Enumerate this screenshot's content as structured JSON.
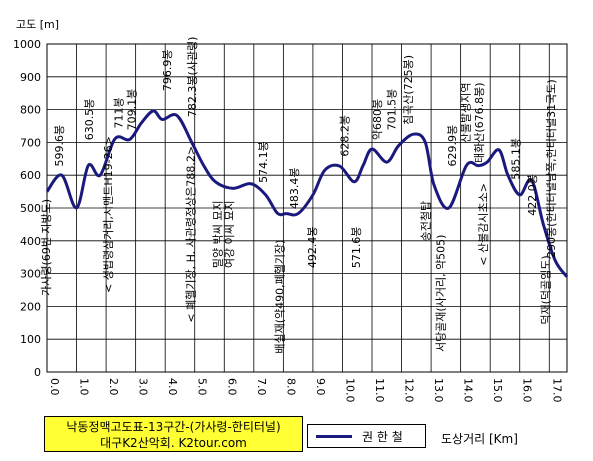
{
  "chart_data": {
    "type": "line",
    "title_line1": "낙동정맥고도표-13구간-(가사령-한티터널)",
    "title_line2": "대구K2산악회. K2tour.com",
    "ylabel": "고도 [m]",
    "xlabel": "도상거리 [Km]",
    "ylim": [
      0,
      1000
    ],
    "xlim": [
      0,
      17.6
    ],
    "y_ticks": [
      "0",
      "100",
      "200",
      "300",
      "400",
      "500",
      "600",
      "700",
      "800",
      "900",
      "1000"
    ],
    "x_ticks": [
      "0.0",
      "1.0",
      "2.0",
      "3.0",
      "4.0",
      "5.0",
      "6.0",
      "7.0",
      "8.0",
      "9.0",
      "10.0",
      "11.0",
      "12.0",
      "13.0",
      "14.0",
      "15.0",
      "16.0",
      "17.0"
    ],
    "grid": true,
    "legend_position": "bottom",
    "line_color": "#1a1a7e",
    "series": [
      {
        "name": "권 한 철",
        "x": [
          0,
          0.5,
          1.0,
          1.4,
          1.8,
          2.3,
          2.8,
          3.2,
          3.6,
          3.9,
          4.4,
          4.9,
          5.3,
          5.7,
          6.3,
          6.9,
          7.4,
          7.8,
          8.1,
          8.5,
          9.0,
          9.4,
          9.9,
          10.4,
          10.7,
          11.0,
          11.5,
          11.9,
          12.4,
          12.8,
          13.1,
          13.6,
          14.2,
          14.6,
          14.9,
          15.3,
          15.6,
          16.0,
          16.4,
          16.8,
          17.2,
          17.6
        ],
        "y": [
          550,
          600,
          500,
          630,
          600,
          711,
          709,
          760,
          796,
          770,
          782,
          700,
          630,
          580,
          560,
          574,
          540,
          484,
          483,
          483,
          540,
          615,
          628,
          580,
          630,
          680,
          640,
          690,
          725,
          701,
          570,
          500,
          630,
          629,
          640,
          677,
          600,
          540,
          585,
          450,
          340,
          290
        ]
      }
    ],
    "annotations": [
      {
        "text": "가사령(69번 지방도)",
        "x": 0.1,
        "y": 380
      },
      {
        "text": "599.6봉",
        "x": 0.55,
        "y": 690
      },
      {
        "text": "630.5봉",
        "x": 1.55,
        "y": 770
      },
      {
        "text": "< 성법령삼거리,시멘트H19-26>",
        "x": 2.2,
        "y": 480
      },
      {
        "text": "711봉",
        "x": 2.55,
        "y": 790
      },
      {
        "text": "709.1봉",
        "x": 3.0,
        "y": 800
      },
      {
        "text": "796.9봉",
        "x": 4.2,
        "y": 920
      },
      {
        "text": "782.3봉(사관령)",
        "x": 5.05,
        "y": 900
      },
      {
        "text": "< 폐헬기장, H. 사관령정상은788.2>",
        "x": 5.0,
        "y": 420
      },
      {
        "text": "밀양 박씨 묘지",
        "x": 5.9,
        "y": 420
      },
      {
        "text": "여강 이씨 묘지",
        "x": 6.3,
        "y": 420
      },
      {
        "text": "574.1봉",
        "x": 7.45,
        "y": 640
      },
      {
        "text": "배실재(약490,폐헬기장)",
        "x": 8.0,
        "y": 230
      },
      {
        "text": "483.4봉",
        "x": 8.5,
        "y": 560
      },
      {
        "text": "492.4봉",
        "x": 9.1,
        "y": 380
      },
      {
        "text": "628.2봉",
        "x": 10.2,
        "y": 720
      },
      {
        "text": "571.6봉",
        "x": 10.6,
        "y": 380
      },
      {
        "text": "약680봉",
        "x": 11.3,
        "y": 770
      },
      {
        "text": "701.5봉",
        "x": 11.8,
        "y": 800
      },
      {
        "text": "침곡산(725봉)",
        "x": 12.35,
        "y": 860
      },
      {
        "text": "송전철탑",
        "x": 12.95,
        "y": 460
      },
      {
        "text": "서당골재(사거리, 약505)",
        "x": 13.45,
        "y": 240
      },
      {
        "text": "629.9봉",
        "x": 13.85,
        "y": 690
      },
      {
        "text": "산불발생지역",
        "x": 14.3,
        "y": 790
      },
      {
        "text": "태화산(676.8봉)",
        "x": 14.75,
        "y": 760
      },
      {
        "text": "< 산불감시초소>",
        "x": 14.9,
        "y": 450
      },
      {
        "text": "585.1봉",
        "x": 16.0,
        "y": 650
      },
      {
        "text": "422.0봉",
        "x": 16.55,
        "y": 540
      },
      {
        "text": "290봉(한티터널남쪽,한티터널31국도)",
        "x": 17.2,
        "y": 620
      },
      {
        "text": "덕재(덕골임도)",
        "x": 17.0,
        "y": 250
      }
    ]
  }
}
